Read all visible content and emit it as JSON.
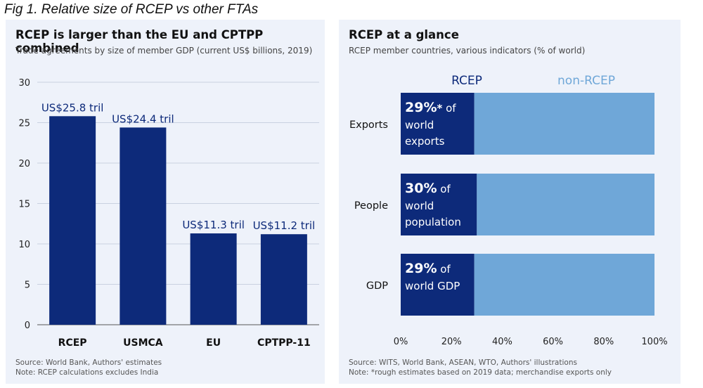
{
  "figure_caption": "Fig 1. Relative size of RCEP vs other FTAs",
  "colors": {
    "dark_blue": "#0d2a7a",
    "light_blue": "#6fa7d8",
    "panel_bg": "#eef2fa"
  },
  "chart_data": [
    {
      "type": "bar",
      "title": "RCEP is larger than the EU and CPTPP combined",
      "subtitle": "Trade agreements by size of member GDP (current US$ billions, 2019)",
      "categories": [
        "RCEP",
        "USMCA",
        "EU",
        "CPTPP-11"
      ],
      "values": [
        25.8,
        24.4,
        11.3,
        11.2
      ],
      "data_labels": [
        "US$25.8 tril",
        "US$24.4 tril",
        "US$11.3 tril",
        "US$11.2 tril"
      ],
      "ylim": [
        0,
        30
      ],
      "yticks": [
        "0",
        "5",
        "10",
        "15",
        "20",
        "25",
        "30"
      ],
      "xlabel": "",
      "ylabel": "",
      "source": "Source: World Bank, Authors' estimates",
      "note": "Note: RCEP calculations excludes India"
    },
    {
      "type": "bar",
      "orientation": "horizontal",
      "stacked": true,
      "title": "RCEP at a glance",
      "subtitle": "RCEP member countries, various indicators (% of world)",
      "categories": [
        "Exports",
        "People",
        "GDP"
      ],
      "series": [
        {
          "name": "RCEP",
          "values": [
            29,
            30,
            29
          ]
        },
        {
          "name": "non-RCEP",
          "values": [
            71,
            70,
            71
          ]
        }
      ],
      "bar_labels": [
        {
          "big": "29%",
          "star": "*",
          "rest": " of",
          "line2": "world",
          "line3": "exports"
        },
        {
          "big": "30%",
          "star": "",
          "rest": " of",
          "line2": "world",
          "line3": "population"
        },
        {
          "big": "29%",
          "star": "",
          "rest": " of",
          "line2": "world GDP",
          "line3": ""
        }
      ],
      "xlim": [
        0,
        100
      ],
      "xticks": [
        "0%",
        "20%",
        "40%",
        "60%",
        "80%",
        "100%"
      ],
      "source": "Source: WITS, World Bank, ASEAN, WTO, Authors' illustrations",
      "note": "Note: *rough estimates based on 2019 data; merchandise exports only"
    }
  ]
}
